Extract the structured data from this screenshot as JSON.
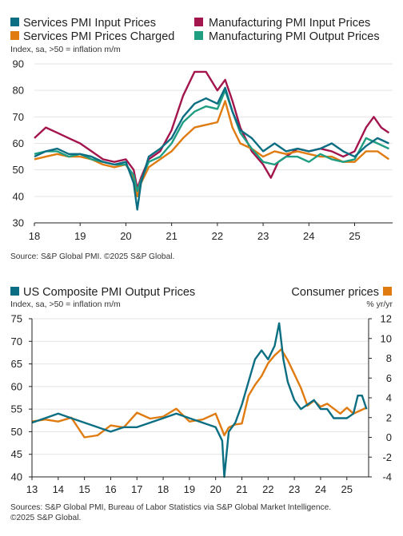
{
  "colors": {
    "services_input": "#0b6e82",
    "manufacturing_input": "#a3154d",
    "services_charged": "#e07b10",
    "manufacturing_output": "#1f9e82",
    "composite": "#0b6e82",
    "consumer": "#e07b10"
  },
  "chart_data": [
    {
      "type": "line",
      "legend": [
        "Services PMI Input Prices",
        "Manufacturing PMI Input Prices",
        "Services PMI Prices Charged",
        "Manufacturing PMI Output Prices"
      ],
      "ylabel": "Index, sa, >50 = inflation m/m",
      "ylim": [
        30,
        90
      ],
      "yticks": [
        "30",
        "40",
        "50",
        "60",
        "70",
        "80",
        "90"
      ],
      "xlim": [
        2018.0,
        2025.83
      ],
      "xticks": [
        "18",
        "19",
        "20",
        "21",
        "22",
        "23",
        "24",
        "25"
      ],
      "grid": true,
      "source": "Source: S&P Global PMI. ©2025 S&P Global.",
      "series": [
        {
          "name": "Services PMI Input Prices",
          "color_key": "services_input",
          "x": [
            2018.0,
            2018.25,
            2018.5,
            2018.75,
            2019.0,
            2019.25,
            2019.5,
            2019.75,
            2020.0,
            2020.17,
            2020.25,
            2020.33,
            2020.5,
            2020.75,
            2021.0,
            2021.25,
            2021.5,
            2021.75,
            2022.0,
            2022.17,
            2022.33,
            2022.5,
            2022.75,
            2023.0,
            2023.25,
            2023.5,
            2023.75,
            2024.0,
            2024.25,
            2024.5,
            2024.75,
            2025.0,
            2025.25,
            2025.5,
            2025.75
          ],
          "y": [
            55,
            57,
            58,
            56,
            56,
            55,
            53,
            52,
            53,
            45,
            35,
            45,
            55,
            58,
            62,
            70,
            75,
            77,
            75,
            81,
            72,
            65,
            62,
            57,
            60,
            57,
            58,
            57,
            58,
            60,
            57,
            55,
            59,
            62,
            60
          ]
        },
        {
          "name": "Manufacturing PMI Input Prices",
          "color_key": "manufacturing_input",
          "x": [
            2018.0,
            2018.25,
            2018.5,
            2018.75,
            2019.0,
            2019.25,
            2019.5,
            2019.75,
            2020.0,
            2020.17,
            2020.25,
            2020.33,
            2020.5,
            2020.75,
            2021.0,
            2021.25,
            2021.5,
            2021.75,
            2022.0,
            2022.17,
            2022.33,
            2022.5,
            2022.75,
            2023.0,
            2023.17,
            2023.33,
            2023.5,
            2023.75,
            2024.0,
            2024.25,
            2024.5,
            2024.75,
            2025.0,
            2025.25,
            2025.42,
            2025.58,
            2025.75
          ],
          "y": [
            62,
            66,
            64,
            62,
            60,
            57,
            54,
            53,
            54,
            50,
            43,
            47,
            54,
            57,
            65,
            78,
            87,
            87,
            80,
            84,
            76,
            66,
            57,
            52,
            47,
            53,
            55,
            58,
            57,
            58,
            57,
            55,
            57,
            66,
            70,
            66,
            64
          ]
        },
        {
          "name": "Services PMI Prices Charged",
          "color_key": "services_charged",
          "x": [
            2018.0,
            2018.25,
            2018.5,
            2018.75,
            2019.0,
            2019.25,
            2019.5,
            2019.75,
            2020.0,
            2020.17,
            2020.25,
            2020.33,
            2020.5,
            2020.75,
            2021.0,
            2021.25,
            2021.5,
            2021.75,
            2022.0,
            2022.17,
            2022.33,
            2022.5,
            2022.75,
            2023.0,
            2023.25,
            2023.5,
            2023.75,
            2024.0,
            2024.25,
            2024.5,
            2024.75,
            2025.0,
            2025.25,
            2025.5,
            2025.75
          ],
          "y": [
            54,
            55,
            56,
            55,
            55,
            54,
            52,
            51,
            52,
            47,
            40,
            45,
            51,
            54,
            57,
            62,
            66,
            67,
            68,
            76,
            66,
            60,
            58,
            55,
            57,
            56,
            57,
            56,
            55,
            55,
            53,
            53,
            57,
            57,
            54
          ]
        },
        {
          "name": "Manufacturing PMI Output Prices",
          "color_key": "manufacturing_output",
          "x": [
            2018.0,
            2018.25,
            2018.5,
            2018.75,
            2019.0,
            2019.25,
            2019.5,
            2019.75,
            2020.0,
            2020.17,
            2020.25,
            2020.33,
            2020.5,
            2020.75,
            2021.0,
            2021.25,
            2021.5,
            2021.75,
            2022.0,
            2022.17,
            2022.33,
            2022.5,
            2022.75,
            2023.0,
            2023.25,
            2023.5,
            2023.75,
            2024.0,
            2024.25,
            2024.5,
            2024.75,
            2025.0,
            2025.25,
            2025.5,
            2025.75
          ],
          "y": [
            56,
            57,
            57,
            55,
            56,
            54,
            53,
            52,
            52,
            48,
            42,
            46,
            53,
            55,
            60,
            68,
            72,
            74,
            73,
            80,
            72,
            64,
            58,
            53,
            52,
            55,
            55,
            53,
            56,
            54,
            53,
            54,
            62,
            60,
            58
          ]
        }
      ]
    },
    {
      "type": "line",
      "legend_left": "US Composite PMI Output Prices",
      "legend_right": "Consumer prices",
      "ylabel_left": "Index, sa, >50 = inflation m/m",
      "ylabel_right": "% yr/yr",
      "ylim_left": [
        40,
        75
      ],
      "yticks_left": [
        "40",
        "45",
        "50",
        "55",
        "60",
        "65",
        "70",
        "75"
      ],
      "ylim_right": [
        -4,
        12
      ],
      "yticks_right": [
        "-4",
        "-2",
        "0",
        "2",
        "4",
        "6",
        "8",
        "10",
        "12"
      ],
      "xlim": [
        2013.0,
        2025.83
      ],
      "xticks": [
        "13",
        "14",
        "15",
        "16",
        "17",
        "18",
        "19",
        "20",
        "21",
        "22",
        "23",
        "24",
        "25"
      ],
      "grid": true,
      "source": "Sources: S&P Global PMI, Bureau of Labor Statistics via S&P Global Market Intelligence.",
      "copyright": "©2025 S&P Global.",
      "series": [
        {
          "name": "US Composite PMI Output Prices",
          "axis": "left",
          "color_key": "composite",
          "x": [
            2013.0,
            2013.5,
            2014.0,
            2014.5,
            2015.0,
            2015.5,
            2016.0,
            2016.5,
            2017.0,
            2017.5,
            2018.0,
            2018.5,
            2019.0,
            2019.5,
            2020.0,
            2020.25,
            2020.33,
            2020.5,
            2020.75,
            2021.0,
            2021.25,
            2021.5,
            2021.75,
            2022.0,
            2022.25,
            2022.42,
            2022.58,
            2022.75,
            2023.0,
            2023.25,
            2023.5,
            2023.75,
            2024.0,
            2024.25,
            2024.5,
            2024.75,
            2025.0,
            2025.25,
            2025.42,
            2025.58,
            2025.75
          ],
          "y": [
            52,
            53,
            54,
            53,
            52,
            51,
            50,
            51,
            51,
            52,
            53,
            54,
            53,
            52,
            51,
            48,
            40,
            50,
            52,
            56,
            61,
            66,
            68,
            66,
            69,
            74,
            66,
            61,
            57,
            55,
            56,
            57,
            55,
            55,
            53,
            53,
            53,
            54,
            58,
            58,
            55
          ]
        },
        {
          "name": "Consumer prices",
          "axis": "right",
          "color_key": "consumer",
          "x": [
            2013.0,
            2013.5,
            2014.0,
            2014.5,
            2015.0,
            2015.5,
            2016.0,
            2016.5,
            2017.0,
            2017.5,
            2018.0,
            2018.5,
            2019.0,
            2019.5,
            2020.0,
            2020.33,
            2020.5,
            2020.75,
            2021.0,
            2021.25,
            2021.5,
            2021.75,
            2022.0,
            2022.25,
            2022.5,
            2022.75,
            2023.0,
            2023.25,
            2023.5,
            2023.75,
            2024.0,
            2024.25,
            2024.5,
            2024.75,
            2025.0,
            2025.25,
            2025.5,
            2025.75
          ],
          "y": [
            1.6,
            1.8,
            1.6,
            2.0,
            0.0,
            0.2,
            1.2,
            1.0,
            2.5,
            1.9,
            2.1,
            2.9,
            1.6,
            1.8,
            2.4,
            0.2,
            1.0,
            1.3,
            1.4,
            4.2,
            5.3,
            6.2,
            7.5,
            8.3,
            8.9,
            7.8,
            6.4,
            5.0,
            3.2,
            3.7,
            3.1,
            3.4,
            2.9,
            2.4,
            3.0,
            2.4,
            2.7,
            3.0
          ]
        }
      ]
    }
  ]
}
